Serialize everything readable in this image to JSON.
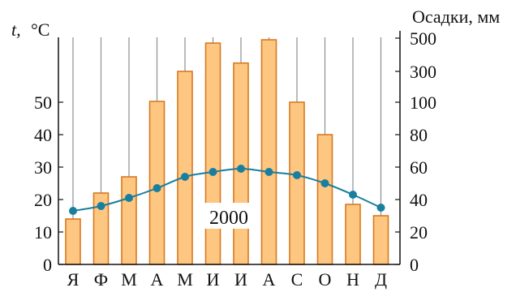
{
  "chart_data": {
    "type": "bar+line",
    "categories": [
      "Я",
      "Ф",
      "М",
      "А",
      "М",
      "И",
      "И",
      "А",
      "С",
      "О",
      "Н",
      "Д"
    ],
    "left_axis": {
      "label_t": "t,",
      "label_unit": "°C",
      "ticks": [
        0,
        10,
        20,
        30,
        40,
        50
      ],
      "ylim": [
        0,
        50
      ]
    },
    "right_axis": {
      "label": "Осадки, мм",
      "ticks": [
        0,
        20,
        40,
        60,
        80,
        100,
        300,
        500
      ],
      "scale": "piecewise: linear 0–100, compressed 100–500"
    },
    "series": [
      {
        "kind": "bar",
        "axis": "right",
        "values": [
          28,
          44,
          54,
          105,
          300,
          470,
          350,
          490,
          100,
          80,
          37,
          30
        ]
      },
      {
        "kind": "line",
        "axis": "left",
        "values": [
          16.5,
          18,
          20.5,
          23.5,
          27,
          28.5,
          29.5,
          28.5,
          27.5,
          25,
          21.5,
          17.5
        ]
      }
    ],
    "annotation": "2000",
    "grid": "vertical lines at category centers",
    "colors": {
      "bar_fill": "#FDC681",
      "bar_stroke": "#D9781F",
      "line": "#1A7E9E",
      "grid": "#8A8F94"
    }
  }
}
